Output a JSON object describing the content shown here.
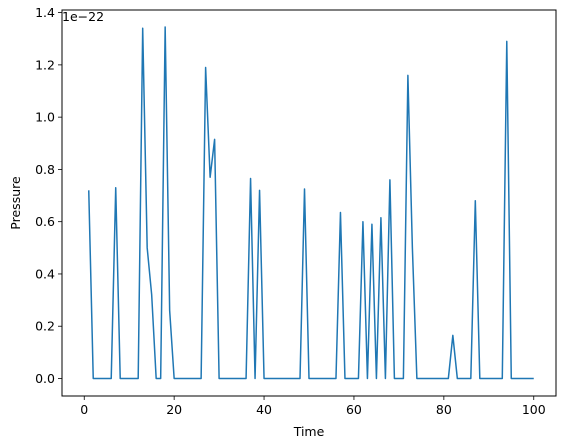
{
  "chart_data": {
    "type": "line",
    "xlabel": "Time",
    "ylabel": "Pressure",
    "offset_label": "1e−22",
    "xlim": [
      -4.95,
      104.95
    ],
    "ylim": [
      -0.067,
      1.41
    ],
    "x_ticks": [
      0,
      20,
      40,
      60,
      80,
      100
    ],
    "x_tick_labels": [
      "0",
      "20",
      "40",
      "60",
      "80",
      "100"
    ],
    "y_ticks": [
      0.0,
      0.2,
      0.4,
      0.6,
      0.8,
      1.0,
      1.2,
      1.4
    ],
    "y_tick_labels": [
      "0.0",
      "0.2",
      "0.4",
      "0.6",
      "0.8",
      "1.0",
      "1.2",
      "1.4"
    ],
    "grid": false,
    "series": [
      {
        "color": "#1f77b4",
        "x": [
          1,
          2,
          3,
          4,
          5,
          6,
          7,
          8,
          9,
          10,
          11,
          12,
          13,
          14,
          15,
          16,
          17,
          18,
          19,
          20,
          21,
          22,
          23,
          24,
          25,
          26,
          27,
          28,
          29,
          30,
          31,
          32,
          33,
          34,
          35,
          36,
          37,
          38,
          39,
          40,
          41,
          42,
          43,
          44,
          45,
          46,
          47,
          48,
          49,
          50,
          51,
          52,
          53,
          54,
          55,
          56,
          57,
          58,
          59,
          60,
          61,
          62,
          63,
          64,
          65,
          66,
          67,
          68,
          69,
          70,
          71,
          72,
          73,
          74,
          75,
          76,
          77,
          78,
          79,
          80,
          81,
          82,
          83,
          84,
          85,
          86,
          87,
          88,
          89,
          90,
          91,
          92,
          93,
          94,
          95,
          96,
          97,
          98,
          99,
          100
        ],
        "y": [
          0.72,
          0.0,
          0.0,
          0.0,
          0.0,
          0.0,
          0.73,
          0.0,
          0.0,
          0.0,
          0.0,
          0.0,
          1.34,
          0.5,
          0.32,
          0.0,
          0.0,
          1.345,
          0.26,
          0.0,
          0.0,
          0.0,
          0.0,
          0.0,
          0.0,
          0.0,
          1.19,
          0.77,
          0.915,
          0.0,
          0.0,
          0.0,
          0.0,
          0.0,
          0.0,
          0.0,
          0.765,
          0.0,
          0.72,
          0.0,
          0.0,
          0.0,
          0.0,
          0.0,
          0.0,
          0.0,
          0.0,
          0.0,
          0.725,
          0.0,
          0.0,
          0.0,
          0.0,
          0.0,
          0.0,
          0.0,
          0.635,
          0.0,
          0.0,
          0.0,
          0.0,
          0.6,
          0.0,
          0.59,
          0.0,
          0.615,
          0.0,
          0.76,
          0.0,
          0.0,
          0.0,
          1.16,
          0.5,
          0.0,
          0.0,
          0.0,
          0.0,
          0.0,
          0.0,
          0.0,
          0.0,
          0.165,
          0.0,
          0.0,
          0.0,
          0.0,
          0.68,
          0.0,
          0.0,
          0.0,
          0.0,
          0.0,
          0.0,
          1.29,
          0.0,
          0.0,
          0.0,
          0.0,
          0.0,
          0.0
        ]
      }
    ]
  }
}
